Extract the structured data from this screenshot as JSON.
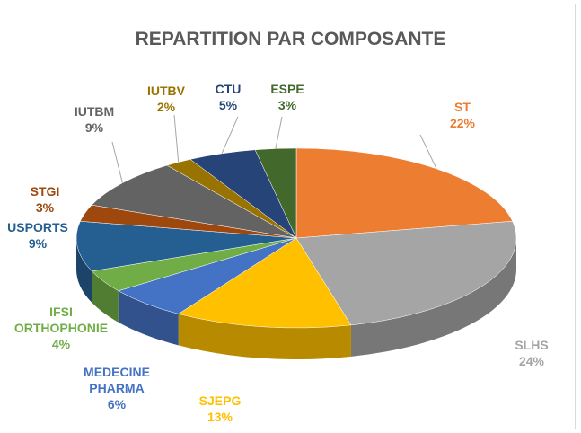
{
  "chart_data": {
    "type": "pie",
    "title": "REPARTITION PAR COMPOSANTE",
    "categories": [
      "ST",
      "SLHS",
      "SJEPG",
      "MEDECINE PHARMA",
      "IFSI ORTHOPHONIE",
      "USPORTS",
      "STGI",
      "IUTBM",
      "IUTBV",
      "CTU",
      "ESPE"
    ],
    "values": [
      22,
      24,
      13,
      6,
      4,
      9,
      3,
      9,
      2,
      5,
      3
    ],
    "value_labels": [
      "22%",
      "24%",
      "13%",
      "6%",
      "4%",
      "9%",
      "3%",
      "9%",
      "2%",
      "5%",
      "3%"
    ],
    "colors": [
      "#ed7d31",
      "#a5a5a5",
      "#ffc000",
      "#4472c4",
      "#70ad47",
      "#255e91",
      "#9e480e",
      "#636363",
      "#997300",
      "#264478",
      "#43682b"
    ]
  }
}
